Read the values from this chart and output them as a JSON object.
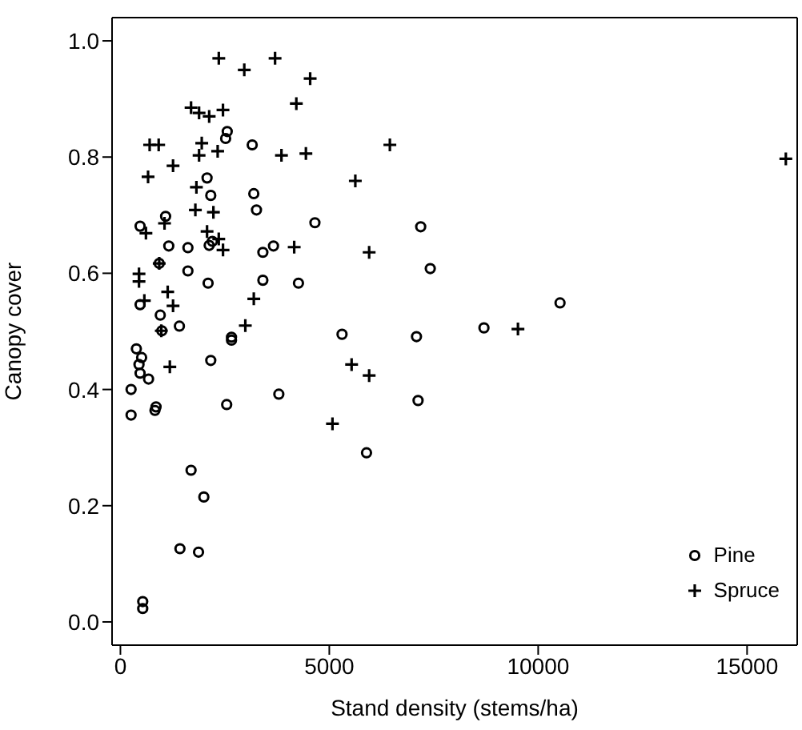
{
  "chart_data": {
    "type": "scatter",
    "xlabel": "Stand density (stems/ha)",
    "ylabel": "Canopy cover",
    "xlim": [
      -200,
      16200
    ],
    "xticks": [
      0,
      5000,
      10000,
      15000
    ],
    "ylim": [
      -0.04,
      1.04
    ],
    "yticks": [
      {
        "value": 0,
        "label": "0.0"
      },
      {
        "value": 0.2,
        "label": "0.2"
      },
      {
        "value": 0.4,
        "label": "0.4"
      },
      {
        "value": 0.6,
        "label": "0.6"
      },
      {
        "value": 0.8,
        "label": "0.8"
      },
      {
        "value": 1,
        "label": "1.0"
      }
    ],
    "legend": "bottom right",
    "grid": false,
    "series": [
      {
        "name": "Pine",
        "color": "#000000",
        "marker": "circle",
        "x": [
          2557,
          2519,
          3155,
          2074,
          2163,
          3193,
          3257,
          1082,
          471,
          4656,
          7188,
          1158,
          1616,
          2125,
          2201,
          3410,
          3664,
          7417,
          1616,
          929,
          2099,
          3410,
          4262,
          471,
          954,
          992,
          1412,
          2659,
          2659,
          5305,
          7087,
          382,
          508,
          445,
          471,
          674,
          2163,
          255,
          255,
          853,
          827,
          2544,
          3792,
          7125,
          5891,
          1691,
          1997,
          1425,
          1870,
          534,
          534,
          10523,
          8702
        ],
        "values": [
          0.844,
          0.832,
          0.821,
          0.764,
          0.734,
          0.737,
          0.709,
          0.698,
          0.681,
          0.687,
          0.68,
          0.647,
          0.644,
          0.648,
          0.655,
          0.636,
          0.647,
          0.608,
          0.604,
          0.617,
          0.583,
          0.588,
          0.583,
          0.546,
          0.528,
          0.501,
          0.509,
          0.49,
          0.485,
          0.495,
          0.491,
          0.47,
          0.455,
          0.443,
          0.428,
          0.418,
          0.45,
          0.4,
          0.356,
          0.37,
          0.364,
          0.374,
          0.392,
          0.381,
          0.291,
          0.261,
          0.215,
          0.126,
          0.12,
          0.035,
          0.023,
          0.549,
          0.506
        ]
      },
      {
        "name": "Spruce",
        "color": "#000000",
        "marker": "cross",
        "x": [
          2355,
          2965,
          3702,
          4542,
          4211,
          1691,
          1883,
          2125,
          2455,
          700,
          916,
          1947,
          1883,
          2328,
          3855,
          4440,
          6450,
          662,
          1260,
          5623,
          1819,
          1794,
          2226,
          1056,
          611,
          2074,
          2354,
          2456,
          4160,
          5954,
          929,
          445,
          445,
          1132,
          1260,
          573,
          3193,
          2990,
          979,
          1183,
          5534,
          5954,
          5076,
          15928,
          9516
        ],
        "values": [
          0.97,
          0.95,
          0.97,
          0.935,
          0.892,
          0.885,
          0.876,
          0.87,
          0.881,
          0.821,
          0.821,
          0.824,
          0.803,
          0.81,
          0.803,
          0.806,
          0.821,
          0.766,
          0.785,
          0.759,
          0.748,
          0.709,
          0.705,
          0.686,
          0.669,
          0.672,
          0.659,
          0.64,
          0.645,
          0.636,
          0.617,
          0.599,
          0.586,
          0.568,
          0.544,
          0.553,
          0.556,
          0.51,
          0.501,
          0.439,
          0.443,
          0.424,
          0.341,
          0.797,
          0.504
        ]
      }
    ]
  }
}
